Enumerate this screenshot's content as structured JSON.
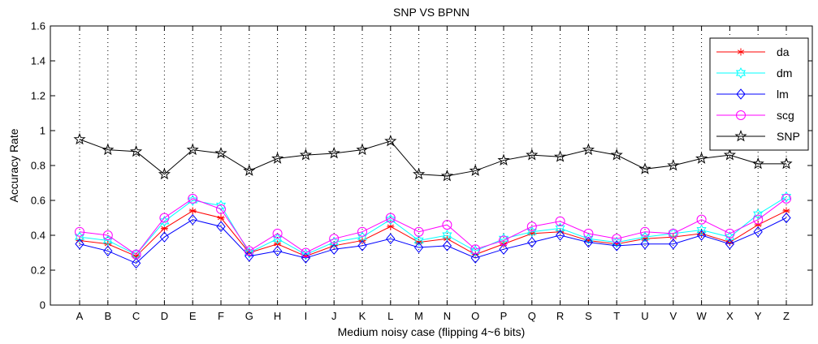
{
  "chart_data": {
    "type": "line",
    "title": "SNP VS BPNN",
    "xlabel": "Medium noisy case (flipping 4~6 bits)",
    "ylabel": "Accuracy Rate",
    "ylim": [
      0,
      1.6
    ],
    "yticks": [
      "0",
      "0.2",
      "0.4",
      "0.6",
      "0.8",
      "1",
      "1.2",
      "1.4",
      "1.6"
    ],
    "categories": [
      "A",
      "B",
      "C",
      "D",
      "E",
      "F",
      "G",
      "H",
      "I",
      "J",
      "K",
      "L",
      "M",
      "N",
      "O",
      "P",
      "Q",
      "R",
      "S",
      "T",
      "U",
      "V",
      "W",
      "X",
      "Y",
      "Z"
    ],
    "grid": "dotted-vertical",
    "legend_position": "top-right",
    "series": [
      {
        "name": "da",
        "color": "#ff0000",
        "marker": "asterisk",
        "values": [
          0.37,
          0.35,
          0.28,
          0.44,
          0.54,
          0.5,
          0.3,
          0.35,
          0.28,
          0.34,
          0.37,
          0.45,
          0.36,
          0.38,
          0.29,
          0.35,
          0.41,
          0.42,
          0.37,
          0.35,
          0.38,
          0.39,
          0.41,
          0.36,
          0.46,
          0.54
        ]
      },
      {
        "name": "dm",
        "color": "#00ffff",
        "marker": "hexagram",
        "values": [
          0.39,
          0.37,
          0.29,
          0.48,
          0.6,
          0.57,
          0.3,
          0.38,
          0.29,
          0.36,
          0.39,
          0.49,
          0.37,
          0.4,
          0.31,
          0.38,
          0.42,
          0.44,
          0.38,
          0.36,
          0.39,
          0.41,
          0.43,
          0.39,
          0.52,
          0.62
        ]
      },
      {
        "name": "lm",
        "color": "#0000ff",
        "marker": "diamond",
        "values": [
          0.35,
          0.31,
          0.24,
          0.39,
          0.49,
          0.45,
          0.28,
          0.31,
          0.27,
          0.32,
          0.34,
          0.38,
          0.33,
          0.34,
          0.27,
          0.32,
          0.36,
          0.4,
          0.36,
          0.34,
          0.35,
          0.35,
          0.4,
          0.35,
          0.42,
          0.5
        ]
      },
      {
        "name": "scg",
        "color": "#ff00ff",
        "marker": "circle",
        "values": [
          0.42,
          0.4,
          0.29,
          0.5,
          0.61,
          0.55,
          0.31,
          0.41,
          0.3,
          0.38,
          0.42,
          0.5,
          0.42,
          0.46,
          0.32,
          0.37,
          0.45,
          0.48,
          0.41,
          0.38,
          0.42,
          0.41,
          0.49,
          0.41,
          0.49,
          0.61
        ]
      },
      {
        "name": "SNP",
        "color": "#000000",
        "marker": "pentagram",
        "values": [
          0.95,
          0.89,
          0.88,
          0.75,
          0.89,
          0.87,
          0.77,
          0.84,
          0.86,
          0.87,
          0.89,
          0.94,
          0.75,
          0.74,
          0.77,
          0.83,
          0.86,
          0.85,
          0.89,
          0.86,
          0.78,
          0.8,
          0.84,
          0.86,
          0.81,
          0.81
        ]
      }
    ]
  }
}
